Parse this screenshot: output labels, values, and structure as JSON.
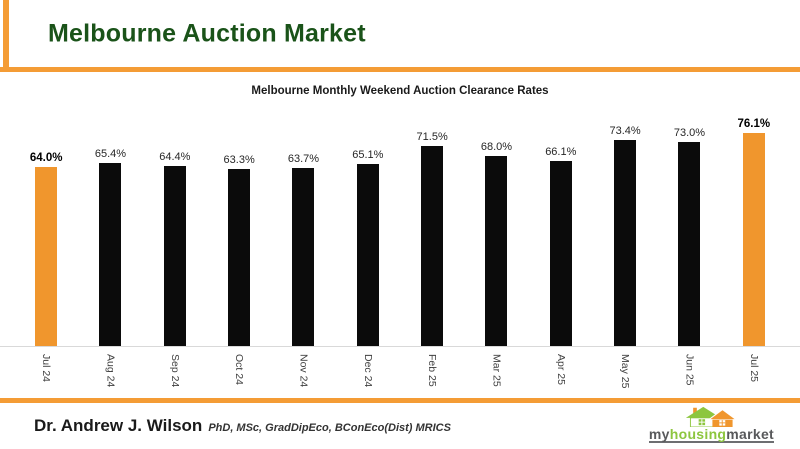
{
  "header": {
    "title": "Melbourne Auction Market",
    "title_color": "#1A5319",
    "accent_color": "#F49C35"
  },
  "chart_data": {
    "type": "bar",
    "title": "Melbourne Monthly Weekend Auction Clearance Rates",
    "categories": [
      "Jul 24",
      "Aug 24",
      "Sep 24",
      "Oct 24",
      "Nov 24",
      "Dec 24",
      "Feb 25",
      "Mar 25",
      "Apr 25",
      "May 25",
      "Jun 25",
      "Jul 25"
    ],
    "values": [
      64.0,
      65.4,
      64.4,
      63.3,
      63.7,
      65.1,
      71.5,
      68.0,
      66.1,
      73.4,
      73.0,
      76.1
    ],
    "value_label_format": "0.0%",
    "highlight_indices": [
      0,
      11
    ],
    "colors": {
      "bar": "#0B0B0B",
      "highlight": "#F0962D",
      "axis_line": "#D9D9D9"
    },
    "xlabel": "",
    "ylabel": "",
    "ylim": [
      0,
      85
    ],
    "gridlines": false,
    "legend": "none",
    "value_labels_position": "above-bars",
    "x_tick_orientation": "vertical"
  },
  "footer": {
    "author": "Dr. Andrew J. Wilson",
    "credentials": "PhD, MSc, GradDipEco, BConEco(Dist) MRICS",
    "logo": {
      "part_my": "my",
      "part_housing": "housing",
      "part_market": "market",
      "green": "#8DC63F",
      "gray": "#58595B",
      "orange": "#F0962D"
    }
  }
}
